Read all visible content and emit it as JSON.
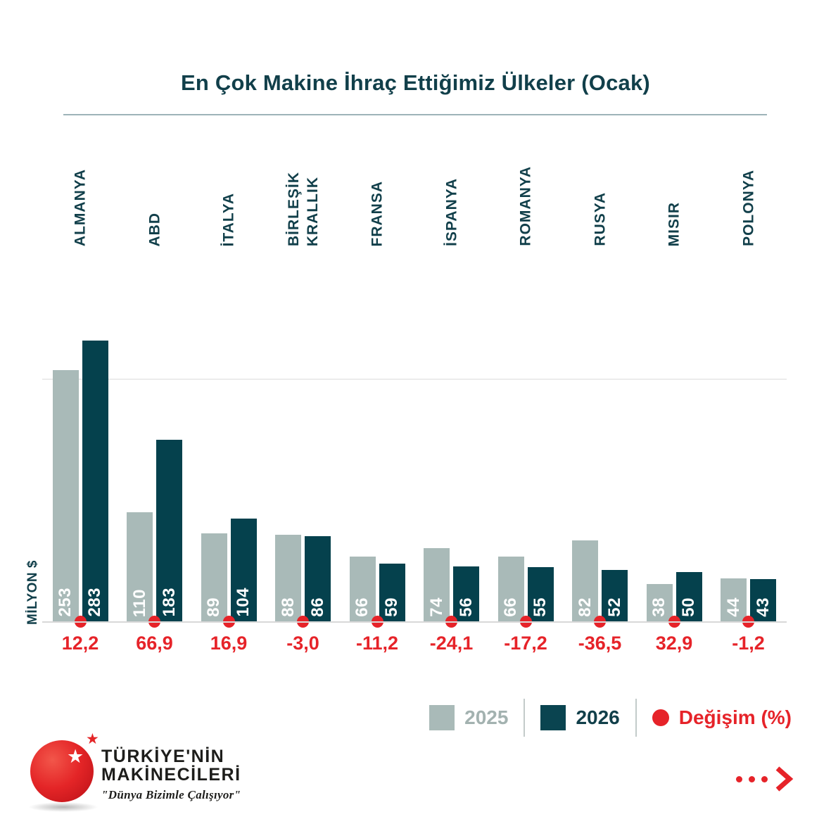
{
  "chart_data": {
    "type": "bar",
    "title": "En Çok Makine İhraç Ettiğimiz Ülkeler (Ocak)",
    "ylabel": "MİLYON $",
    "categories": [
      "ALMANYA",
      "ABD",
      "İTALYA",
      "BİRLEŞİK KRALLIK",
      "FRANSA",
      "İSPANYA",
      "ROMANYA",
      "RUSYA",
      "MISIR",
      "POLONYA"
    ],
    "series": [
      {
        "name": "2025",
        "values": [
          253,
          110,
          89,
          88,
          66,
          74,
          66,
          82,
          38,
          44
        ]
      },
      {
        "name": "2026",
        "values": [
          283,
          183,
          104,
          86,
          59,
          56,
          55,
          52,
          50,
          43
        ]
      }
    ],
    "change_percent": [
      "12,2",
      "66,9",
      "16,9",
      "-3,0",
      "-11,2",
      "-24,1",
      "-17,2",
      "-36,5",
      "32,9",
      "-1,2"
    ],
    "ylim": [
      0,
      290
    ],
    "gridline_value": 250,
    "grid": "single horizontal gridline",
    "legend_position": "bottom-right"
  },
  "legend": {
    "label_2025": "2025",
    "label_2026": "2026",
    "change_label": "Değişim (%)"
  },
  "colors": {
    "bar_2025": "#a9bab8",
    "bar_2026": "#05414d",
    "accent_red": "#e62329",
    "teal_text": "#113f4a"
  },
  "footer": {
    "brand_line1": "TÜRKİYE'NİN",
    "brand_line2": "MAKİNECİLERİ",
    "slogan": "\"Dünya Bizimle Çalışıyor\""
  }
}
